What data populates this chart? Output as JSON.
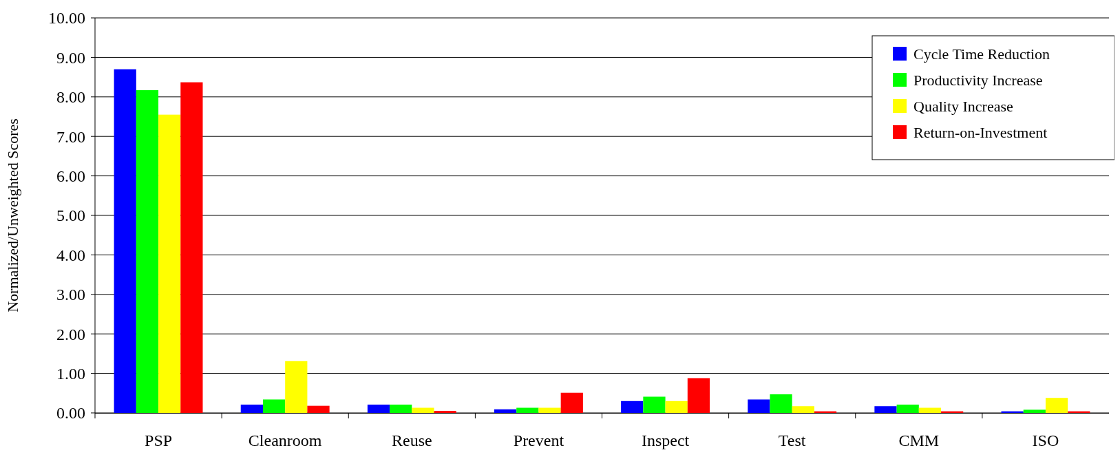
{
  "chart_data": {
    "type": "bar",
    "ylabel": "Normalized/Unweighted Scores",
    "categories": [
      "PSP",
      "Cleanroom",
      "Reuse",
      "Prevent",
      "Inspect",
      "Test",
      "CMM",
      "ISO"
    ],
    "series": [
      {
        "name": "Cycle Time Reduction",
        "color": "#0000ff",
        "values": [
          8.7,
          0.21,
          0.21,
          0.09,
          0.3,
          0.34,
          0.17,
          0.04
        ]
      },
      {
        "name": "Productivity Increase",
        "color": "#00ff00",
        "values": [
          8.17,
          0.34,
          0.21,
          0.13,
          0.41,
          0.47,
          0.21,
          0.08
        ]
      },
      {
        "name": "Quality Increase",
        "color": "#ffff00",
        "values": [
          7.55,
          1.31,
          0.13,
          0.13,
          0.3,
          0.17,
          0.13,
          0.38
        ]
      },
      {
        "name": "Return-on-Investment",
        "color": "#ff0000",
        "values": [
          8.37,
          0.18,
          0.05,
          0.51,
          0.88,
          0.04,
          0.04,
          0.04
        ]
      }
    ],
    "ylim": [
      0,
      10
    ],
    "yticks": [
      {
        "value": 0,
        "label": "0.00"
      },
      {
        "value": 1,
        "label": "1.00"
      },
      {
        "value": 2,
        "label": "2.00"
      },
      {
        "value": 3,
        "label": "3.00"
      },
      {
        "value": 4,
        "label": "4.00"
      },
      {
        "value": 5,
        "label": "5.00"
      },
      {
        "value": 6,
        "label": "6.00"
      },
      {
        "value": 7,
        "label": "7.00"
      },
      {
        "value": 8,
        "label": "8.00"
      },
      {
        "value": 9,
        "label": "9.00"
      },
      {
        "value": 10,
        "label": "10.00"
      }
    ],
    "grid": "y",
    "legend": "top right"
  }
}
